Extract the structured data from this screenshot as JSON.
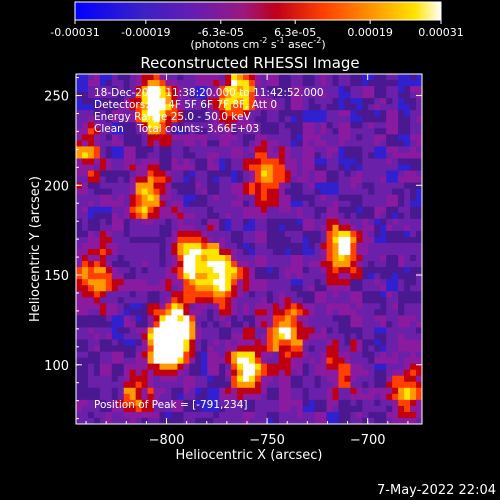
{
  "colorbar": {
    "ticks": [
      {
        "label": "-0.00031",
        "value": -0.00031
      },
      {
        "label": "-0.00019",
        "value": -0.00019
      },
      {
        "label": "-6.3e-05",
        "value": -6.3e-05
      },
      {
        "label": "6.3e-05",
        "value": 6.3e-05
      },
      {
        "label": "0.00019",
        "value": 0.00019
      },
      {
        "label": "0.00031",
        "value": 0.00031
      }
    ],
    "units_main": "(photons cm",
    "units_exp1": "-2",
    "units_mid1": " s",
    "units_exp2": "-1",
    "units_mid2": " asec",
    "units_exp3": "-2",
    "units_end": ")",
    "range": [
      -0.00031,
      0.00031
    ]
  },
  "annotations": {
    "time_range": "18-Dec-2003 11:38:20.000 to 11:42:52.000",
    "detectors": "Detectors: 3F 4F 5F 6F 7F 8F, Att 0",
    "energy_range": "Energy Range 25.0 - 50.0 keV",
    "clean_counts": "Clean    Total counts: 3.66E+03",
    "peak": "Position of Peak = [-791,234]"
  },
  "footer": {
    "date": "7-May-2022 22:04"
  },
  "chart_data": {
    "type": "heatmap",
    "title": "Reconstructed RHESSI Image",
    "xlabel": "Heliocentric X (arcsec)",
    "ylabel": "Heliocentric Y (arcsec)",
    "xlim": [
      -845,
      -673
    ],
    "ylim": [
      67,
      262
    ],
    "x_ticks": [
      {
        "label": "−800",
        "value": -800
      },
      {
        "label": "−750",
        "value": -750
      },
      {
        "label": "−700",
        "value": -700
      }
    ],
    "y_ticks": [
      {
        "label": "100",
        "value": 100
      },
      {
        "label": "150",
        "value": 150
      },
      {
        "label": "200",
        "value": 200
      },
      {
        "label": "250",
        "value": 250
      }
    ],
    "colormap": [
      "#0000ff",
      "#3020d0",
      "#4a1890",
      "#6a20a8",
      "#8a1aa0",
      "#c00010",
      "#ff4000",
      "#ff9a00",
      "#ffe400",
      "#ffffff"
    ],
    "sources": [
      {
        "x": -805,
        "y": 245,
        "amp": 1.0
      },
      {
        "x": -765,
        "y": 250,
        "amp": 0.8
      },
      {
        "x": -810,
        "y": 195,
        "amp": 0.7
      },
      {
        "x": -788,
        "y": 160,
        "amp": 0.9
      },
      {
        "x": -795,
        "y": 120,
        "amp": 0.8
      },
      {
        "x": -800,
        "y": 110,
        "amp": 1.0
      },
      {
        "x": -773,
        "y": 150,
        "amp": 0.9
      },
      {
        "x": -760,
        "y": 100,
        "amp": 0.8
      },
      {
        "x": -740,
        "y": 120,
        "amp": 0.8
      },
      {
        "x": -750,
        "y": 205,
        "amp": 0.6
      },
      {
        "x": -712,
        "y": 165,
        "amp": 0.8
      },
      {
        "x": -815,
        "y": 85,
        "amp": 0.5
      },
      {
        "x": -680,
        "y": 85,
        "amp": 0.6
      },
      {
        "x": -715,
        "y": 100,
        "amp": 0.4
      },
      {
        "x": -835,
        "y": 150,
        "amp": 0.6
      },
      {
        "x": -840,
        "y": 220,
        "amp": 0.5
      }
    ]
  }
}
